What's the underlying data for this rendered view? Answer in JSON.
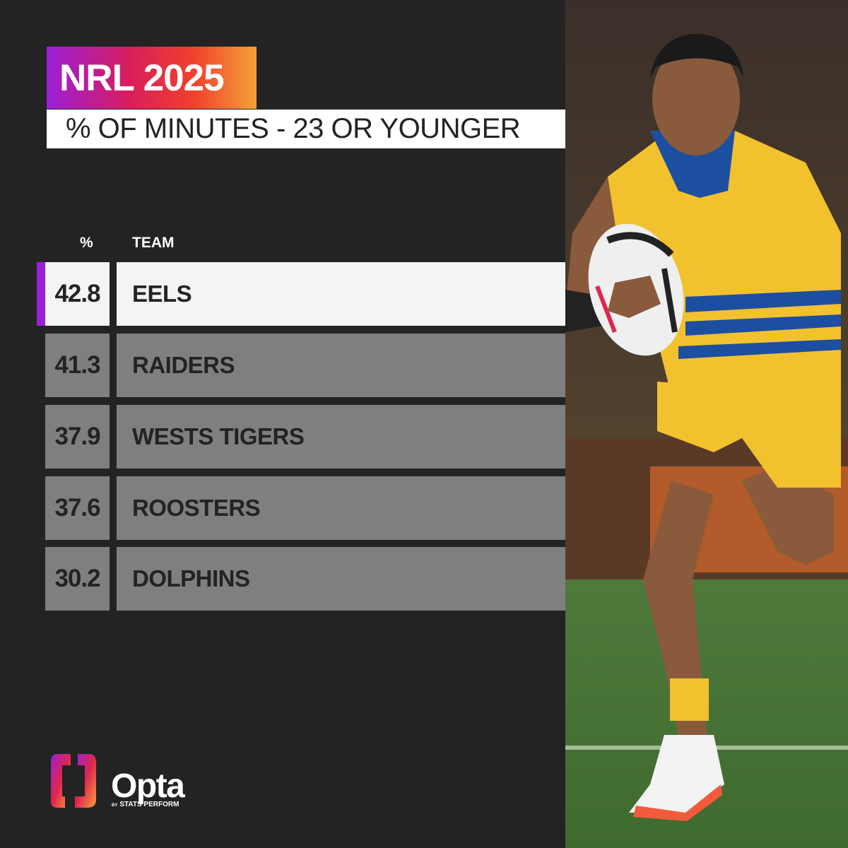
{
  "title": "NRL 2025",
  "subtitle": "% OF MINUTES - 23 OR YOUNGER",
  "table": {
    "headers": {
      "pct": "%",
      "team": "TEAM"
    },
    "rows": [
      {
        "pct": "42.8",
        "team": "EELS"
      },
      {
        "pct": "41.3",
        "team": "RAIDERS"
      },
      {
        "pct": "37.9",
        "team": "WESTS TIGERS"
      },
      {
        "pct": "37.6",
        "team": "ROOSTERS"
      },
      {
        "pct": "30.2",
        "team": "DOLPHINS"
      }
    ]
  },
  "logo": {
    "word": "Opta",
    "by": "BY",
    "sub": "STATS PERFORM"
  },
  "colors": {
    "background": "#232323",
    "accent": "#9b1fd6",
    "row_highlight": "#f4f4f4",
    "row_default": "#7f7f7f",
    "jersey": "#f2c12e",
    "jersey_trim": "#1d4fa0"
  }
}
